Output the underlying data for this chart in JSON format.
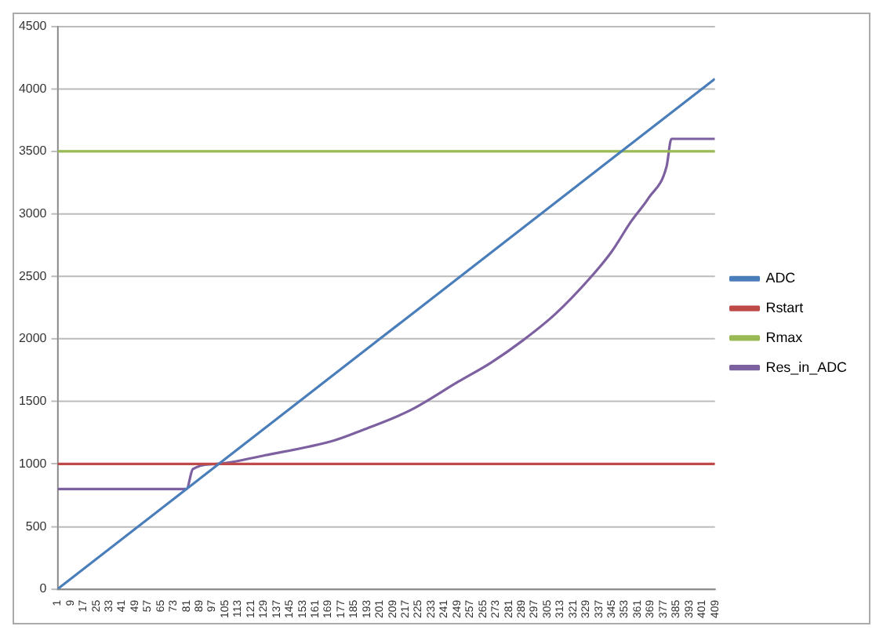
{
  "chart_data": {
    "type": "line",
    "xlim": [
      1,
      409
    ],
    "xticks": [
      1,
      9,
      17,
      25,
      33,
      41,
      49,
      57,
      65,
      73,
      81,
      89,
      97,
      105,
      113,
      121,
      129,
      137,
      145,
      153,
      161,
      169,
      177,
      185,
      193,
      201,
      209,
      217,
      225,
      233,
      241,
      249,
      257,
      265,
      273,
      281,
      289,
      297,
      305,
      313,
      321,
      329,
      337,
      345,
      353,
      361,
      369,
      377,
      385,
      393,
      401,
      409
    ],
    "ylim": [
      0,
      4500
    ],
    "yticks": [
      0,
      500,
      1000,
      1500,
      2000,
      2500,
      3000,
      3500,
      4000,
      4500
    ],
    "grid": "y",
    "legend": "right",
    "marker": "none",
    "line_style": "solid",
    "series": [
      {
        "name": "ADC",
        "color": "#4a7ebb",
        "x": [
          1,
          409
        ],
        "values": [
          0,
          4080
        ]
      },
      {
        "name": "Rstart",
        "color": "#be4b48",
        "x": [
          1,
          409
        ],
        "values": [
          1000,
          1000
        ]
      },
      {
        "name": "Rmax",
        "color": "#98b954",
        "x": [
          1,
          409
        ],
        "values": [
          3500,
          3500
        ]
      },
      {
        "name": "Res_in_ADC",
        "color": "#7d60a0",
        "x": [
          1,
          81,
          85,
          100,
          130,
          173,
          190,
          220,
          250,
          270,
          290,
          310,
          331,
          345,
          357,
          368,
          379,
          382,
          409
        ],
        "values": [
          800,
          800,
          960,
          1000,
          1070,
          1190,
          1270,
          1430,
          1660,
          1810,
          1990,
          2200,
          2480,
          2700,
          2940,
          3130,
          3380,
          3600,
          3600
        ]
      }
    ]
  }
}
